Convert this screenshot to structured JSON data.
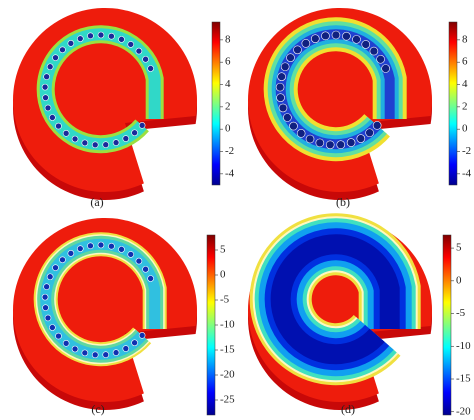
{
  "panels": [
    {
      "label": "(a)",
      "colorbar": {
        "lim": [
          -5,
          9.6
        ],
        "ticks": [
          8,
          6,
          4,
          2,
          0,
          -2,
          -4
        ]
      }
    },
    {
      "label": "(b)",
      "colorbar": {
        "lim": [
          -5,
          9.6
        ],
        "ticks": [
          8,
          6,
          4,
          2,
          0,
          -2,
          -4
        ]
      }
    },
    {
      "label": "(c)",
      "colorbar": {
        "lim": [
          -28,
          8
        ],
        "ticks": [
          5,
          0,
          -5,
          -10,
          -15,
          -20,
          -25
        ]
      }
    },
    {
      "label": "(d)",
      "colorbar": {
        "lim": [
          -20.5,
          7
        ],
        "ticks": [
          5,
          0,
          -5,
          -10,
          -15,
          -20
        ]
      }
    }
  ]
}
